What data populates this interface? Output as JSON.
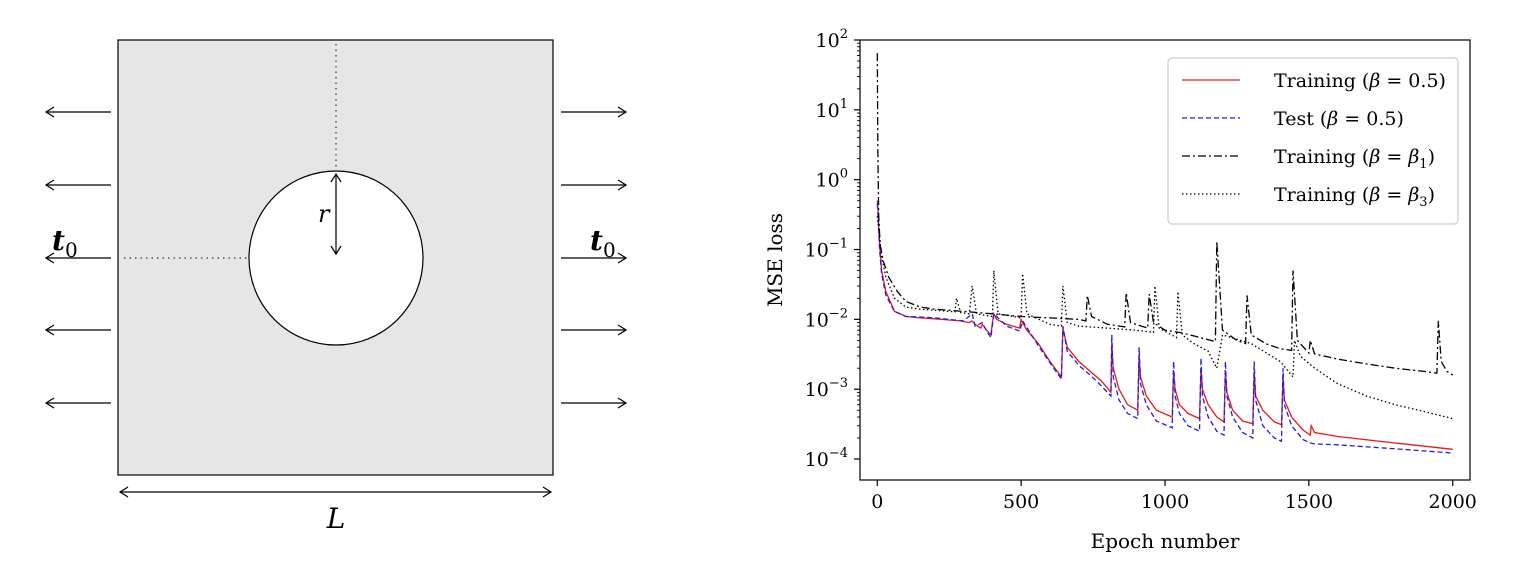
{
  "diagram": {
    "radius_label": "r",
    "length_label": "L",
    "traction_left": "t",
    "traction_right": "t",
    "traction_subscript": "0"
  },
  "chart_data": {
    "type": "line",
    "title": "",
    "xlabel": "Epoch number",
    "ylabel": "MSE loss",
    "xlim": [
      -60,
      2060
    ],
    "ylim_log10": [
      -4.3,
      2.0
    ],
    "yscale": "log",
    "grid": false,
    "legend_position": "top-right",
    "xticks": [
      0,
      500,
      1000,
      1500,
      2000
    ],
    "yticks_base": "10",
    "yticks_exponents": [
      "2",
      "1",
      "0",
      "−1",
      "−2",
      "−3",
      "−4"
    ],
    "series": [
      {
        "name": "Training (β = 0.5)",
        "legend_main": "Training (",
        "legend_beta": "β",
        "legend_rhs": " = 0.5)",
        "legend_sub": "",
        "color": "#e41a1c",
        "dash": "solid",
        "x": [
          0,
          3,
          8,
          15,
          30,
          60,
          100,
          150,
          200,
          250,
          290,
          300,
          320,
          330,
          340,
          360,
          365,
          380,
          395,
          400,
          405,
          415,
          450,
          495,
          500,
          505,
          520,
          560,
          600,
          640,
          645,
          660,
          700,
          740,
          780,
          812,
          815,
          820,
          840,
          870,
          905,
          910,
          915,
          935,
          970,
          1025,
          1030,
          1035,
          1050,
          1080,
          1120,
          1125,
          1130,
          1150,
          1180,
          1205,
          1210,
          1215,
          1235,
          1270,
          1305,
          1310,
          1315,
          1340,
          1380,
          1405,
          1410,
          1415,
          1440,
          1480,
          1505,
          1508,
          1520,
          1600,
          1800,
          2000
        ],
        "y": [
          0.5,
          0.35,
          0.12,
          0.05,
          0.025,
          0.013,
          0.011,
          0.0105,
          0.0102,
          0.0098,
          0.0095,
          0.0093,
          0.009,
          0.0095,
          0.0085,
          0.0075,
          0.0085,
          0.007,
          0.006,
          0.009,
          0.012,
          0.01,
          0.0085,
          0.0075,
          0.01,
          0.009,
          0.007,
          0.0045,
          0.0025,
          0.0015,
          0.0075,
          0.004,
          0.0025,
          0.0018,
          0.0013,
          0.0009,
          0.0045,
          0.002,
          0.001,
          0.0006,
          0.0005,
          0.003,
          0.0015,
          0.0008,
          0.0005,
          0.0004,
          0.0018,
          0.001,
          0.0006,
          0.00045,
          0.00038,
          0.002,
          0.001,
          0.0006,
          0.0004,
          0.00034,
          0.0018,
          0.0009,
          0.0005,
          0.00035,
          0.00032,
          0.0018,
          0.0008,
          0.0005,
          0.00034,
          0.00031,
          0.0015,
          0.0007,
          0.0004,
          0.00026,
          0.00022,
          0.0003,
          0.00024,
          0.00021,
          0.00017,
          0.000138
        ]
      },
      {
        "name": "Test (β = 0.5)",
        "legend_main": "Test (",
        "legend_beta": "β",
        "legend_rhs": " = 0.5)",
        "legend_sub": "",
        "color": "#1f1fe0",
        "dash": "dashed",
        "x": [
          0,
          3,
          8,
          15,
          30,
          60,
          100,
          150,
          200,
          250,
          300,
          330,
          340,
          365,
          380,
          395,
          405,
          450,
          495,
          505,
          560,
          600,
          640,
          645,
          660,
          700,
          740,
          780,
          812,
          815,
          820,
          840,
          870,
          905,
          910,
          915,
          935,
          970,
          1025,
          1030,
          1035,
          1050,
          1080,
          1120,
          1125,
          1130,
          1150,
          1180,
          1205,
          1210,
          1215,
          1235,
          1270,
          1305,
          1310,
          1315,
          1340,
          1380,
          1405,
          1410,
          1415,
          1440,
          1480,
          1505,
          1520,
          1600,
          1800,
          2000
        ],
        "y": [
          0.45,
          0.3,
          0.1,
          0.045,
          0.022,
          0.013,
          0.011,
          0.0108,
          0.0105,
          0.01,
          0.0095,
          0.012,
          0.008,
          0.009,
          0.0068,
          0.0055,
          0.012,
          0.008,
          0.0068,
          0.0095,
          0.0042,
          0.0024,
          0.0014,
          0.008,
          0.0035,
          0.0022,
          0.0016,
          0.0011,
          0.0008,
          0.006,
          0.0015,
          0.0007,
          0.00045,
          0.00038,
          0.004,
          0.0012,
          0.0006,
          0.00035,
          0.00028,
          0.0025,
          0.0008,
          0.00045,
          0.0003,
          0.00025,
          0.0028,
          0.0008,
          0.0004,
          0.00025,
          0.00022,
          0.0025,
          0.0008,
          0.0004,
          0.00024,
          0.0002,
          0.0025,
          0.0007,
          0.0003,
          0.0002,
          0.00018,
          0.002,
          0.0006,
          0.0003,
          0.00019,
          0.00017,
          0.000165,
          0.00016,
          0.00014,
          0.000122
        ]
      },
      {
        "name": "Training (β = β1)",
        "legend_main": "Training (",
        "legend_beta": "β",
        "legend_rhs": " = β",
        "legend_sub": "1",
        "legend_close": ")",
        "color": "#000000",
        "dash": "dashdot",
        "x": [
          0,
          2,
          5,
          10,
          20,
          40,
          70,
          100,
          150,
          200,
          250,
          300,
          400,
          500,
          600,
          700,
          725,
          730,
          745,
          800,
          860,
          865,
          880,
          940,
          945,
          960,
          1000,
          1050,
          1100,
          1175,
          1180,
          1200,
          1250,
          1280,
          1285,
          1300,
          1350,
          1400,
          1440,
          1445,
          1460,
          1500,
          1505,
          1520,
          1600,
          1700,
          1800,
          1900,
          1945,
          1950,
          1960,
          1980,
          2000
        ],
        "y": [
          65,
          3,
          0.3,
          0.12,
          0.07,
          0.04,
          0.025,
          0.018,
          0.015,
          0.014,
          0.0135,
          0.013,
          0.012,
          0.011,
          0.0105,
          0.01,
          0.0095,
          0.022,
          0.011,
          0.0085,
          0.0078,
          0.024,
          0.009,
          0.0075,
          0.023,
          0.009,
          0.007,
          0.0065,
          0.0058,
          0.0048,
          0.13,
          0.007,
          0.005,
          0.0045,
          0.022,
          0.006,
          0.0045,
          0.0038,
          0.0036,
          0.05,
          0.005,
          0.0033,
          0.005,
          0.0032,
          0.0027,
          0.0023,
          0.002,
          0.0018,
          0.0017,
          0.0095,
          0.0025,
          0.0018,
          0.0016
        ]
      },
      {
        "name": "Training (β = β3)",
        "legend_main": "Training (",
        "legend_beta": "β",
        "legend_rhs": " = β",
        "legend_sub": "3",
        "legend_close": ")",
        "color": "#000000",
        "dash": "dotted",
        "x": [
          0,
          5,
          15,
          30,
          60,
          100,
          150,
          200,
          250,
          270,
          275,
          290,
          320,
          330,
          345,
          400,
          405,
          420,
          500,
          505,
          520,
          600,
          640,
          645,
          660,
          700,
          800,
          900,
          960,
          965,
          980,
          1040,
          1045,
          1060,
          1100,
          1150,
          1180,
          1200,
          1300,
          1400,
          1445,
          1450,
          1470,
          1520,
          1600,
          1700,
          1800,
          1900,
          2000
        ],
        "y": [
          0.3,
          0.2,
          0.08,
          0.04,
          0.02,
          0.015,
          0.014,
          0.0135,
          0.013,
          0.0128,
          0.02,
          0.0125,
          0.012,
          0.03,
          0.012,
          0.011,
          0.05,
          0.012,
          0.0105,
          0.045,
          0.012,
          0.0085,
          0.008,
          0.03,
          0.009,
          0.008,
          0.0075,
          0.007,
          0.0065,
          0.03,
          0.0075,
          0.0055,
          0.025,
          0.006,
          0.0045,
          0.0035,
          0.002,
          0.006,
          0.0045,
          0.0025,
          0.0015,
          0.005,
          0.003,
          0.002,
          0.0012,
          0.0008,
          0.0006,
          0.00048,
          0.00038
        ]
      }
    ]
  }
}
